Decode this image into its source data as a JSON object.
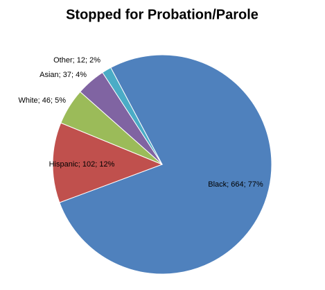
{
  "chart_data": {
    "type": "pie",
    "title": "Stopped for Probation/Parole",
    "values": [
      664,
      102,
      46,
      37,
      12
    ],
    "value_labels": [
      "Black; 664; 77%",
      "Hispanic; 102; 12%",
      "White; 46; 5%",
      "Asian; 37; 4%",
      "Other; 12; 2%"
    ],
    "colors": [
      "#4f81bd",
      "#c0504d",
      "#9bbb59",
      "#8064a2",
      "#4bacc6"
    ]
  }
}
